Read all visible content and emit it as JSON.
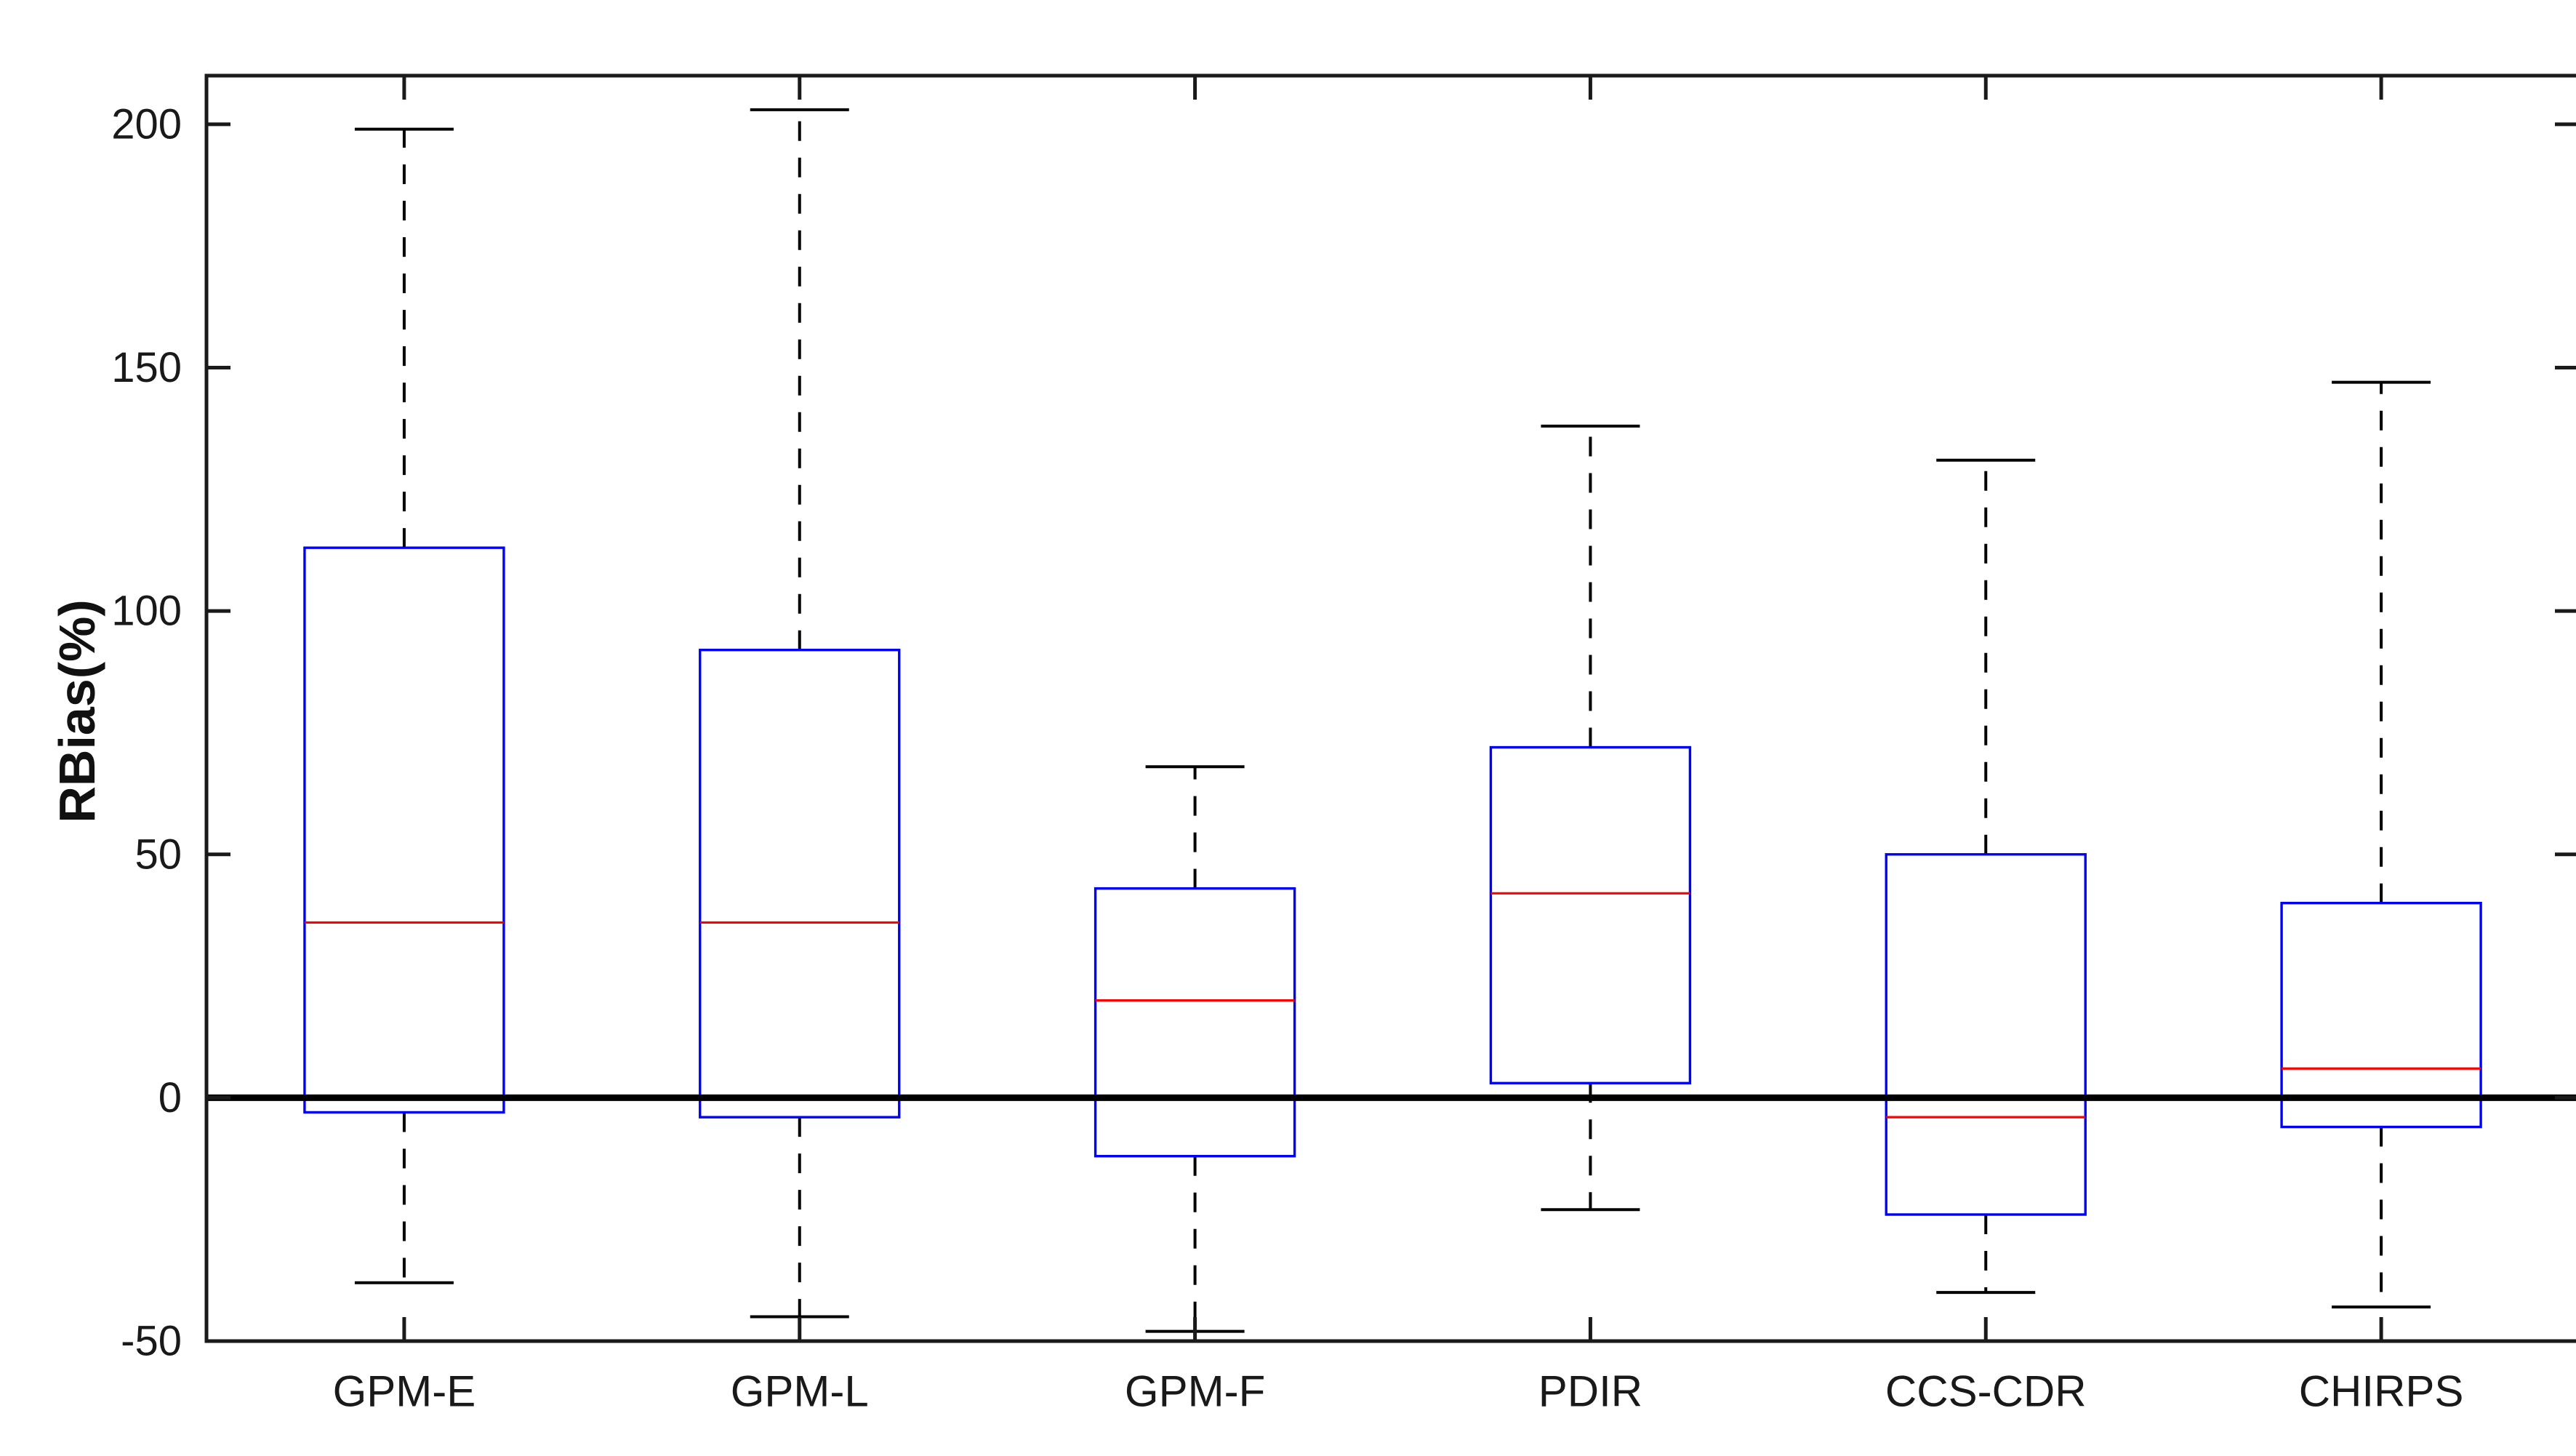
{
  "figure": {
    "background_color": "#ffffff",
    "axis_color": "#1a1a1a",
    "text_color": "#191919",
    "box_color": "#0000ff",
    "median_color": "#ff0000",
    "whisker_color": "#000000",
    "zero_line_color": "#000000"
  },
  "chart_data": {
    "type": "boxplot",
    "title": "",
    "xlabel": "",
    "ylabel": "RBias(%)",
    "categories": [
      "GPM-E",
      "GPM-L",
      "GPM-F",
      "PDIR",
      "CCS-CDR",
      "CHIRPS"
    ],
    "series": [
      {
        "name": "GPM-E",
        "whisker_low": -38,
        "q1": -3,
        "median": 36,
        "q3": 113,
        "whisker_high": 199
      },
      {
        "name": "GPM-L",
        "whisker_low": -45,
        "q1": -4,
        "median": 36,
        "q3": 92,
        "whisker_high": 203
      },
      {
        "name": "GPM-F",
        "whisker_low": -48,
        "q1": -12,
        "median": 20,
        "q3": 43,
        "whisker_high": 68
      },
      {
        "name": "PDIR",
        "whisker_low": -23,
        "q1": 3,
        "median": 42,
        "q3": 72,
        "whisker_high": 138
      },
      {
        "name": "CCS-CDR",
        "whisker_low": -40,
        "q1": -24,
        "median": -4,
        "q3": 50,
        "whisker_high": 131
      },
      {
        "name": "CHIRPS",
        "whisker_low": -43,
        "q1": -6,
        "median": 6,
        "q3": 40,
        "whisker_high": 147
      }
    ],
    "yticks": [
      -50,
      0,
      50,
      100,
      150,
      200
    ],
    "ytick_labels": [
      "-50",
      "0",
      "50",
      "100",
      "150",
      "200"
    ],
    "ylim": [
      -50,
      210
    ],
    "grid": false,
    "reference_line_y": 0,
    "legend": "none"
  }
}
